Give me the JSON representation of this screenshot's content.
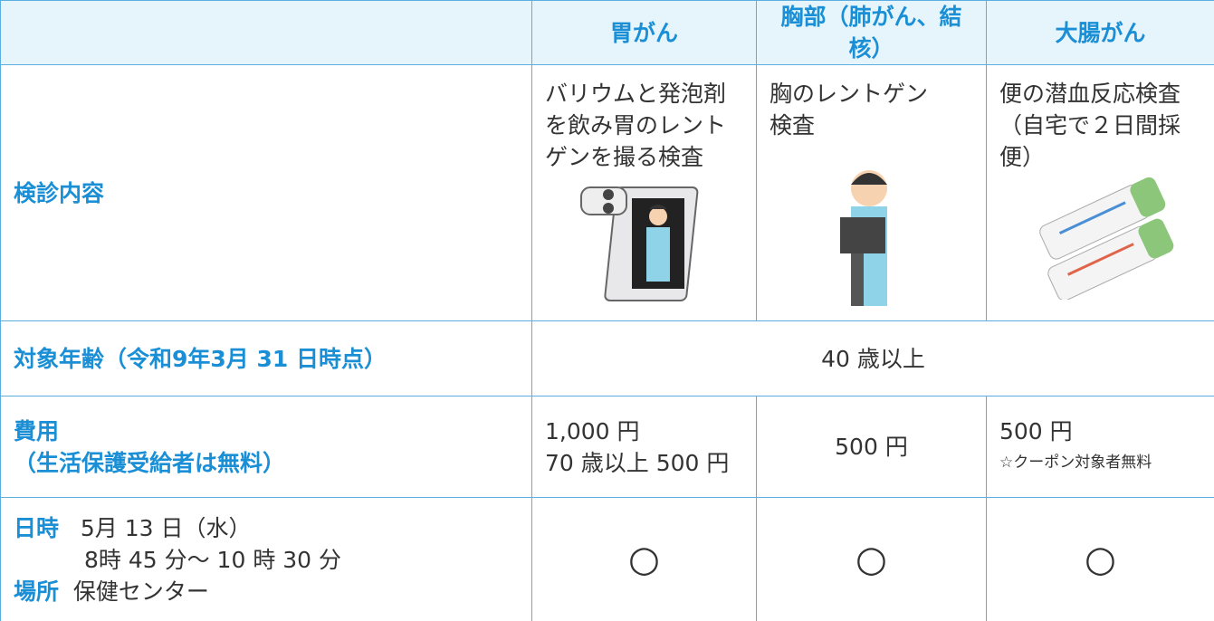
{
  "table": {
    "header": [
      "胃がん",
      "胸部（肺がん、結核）",
      "大腸がん"
    ],
    "rows": [
      {
        "label": [
          "検診内容"
        ],
        "cells": [
          [
            "バリウムと発泡剤",
            "を飲み胃のレント",
            "ゲンを撮る検査"
          ],
          [
            "胸のレントゲン",
            "検査"
          ],
          [
            "便の潜血反応検査",
            "（自宅で２日間採",
            "便）"
          ]
        ]
      },
      {
        "label": [
          "対象年齢（令和9年3月 31 日時点）"
        ],
        "cells": [
          [
            "40 歳以上"
          ]
        ]
      },
      {
        "label": [
          "費用",
          "（生活保護受給者は無料）"
        ],
        "cells": [
          [
            "1,000 円",
            "70 歳以上 500 円"
          ],
          [
            "500 円"
          ],
          [
            "500 円",
            "☆クーポン対象者無料"
          ]
        ]
      },
      {
        "schedule": {
          "date_label": "日時",
          "date": "5月 13 日（水）",
          "time": "8時 45 分～ 10 時 30 分",
          "place_label": "場所",
          "place": "保健センター"
        },
        "cells": [
          [
            "○"
          ],
          [
            "○"
          ],
          [
            "○"
          ]
        ]
      }
    ]
  }
}
